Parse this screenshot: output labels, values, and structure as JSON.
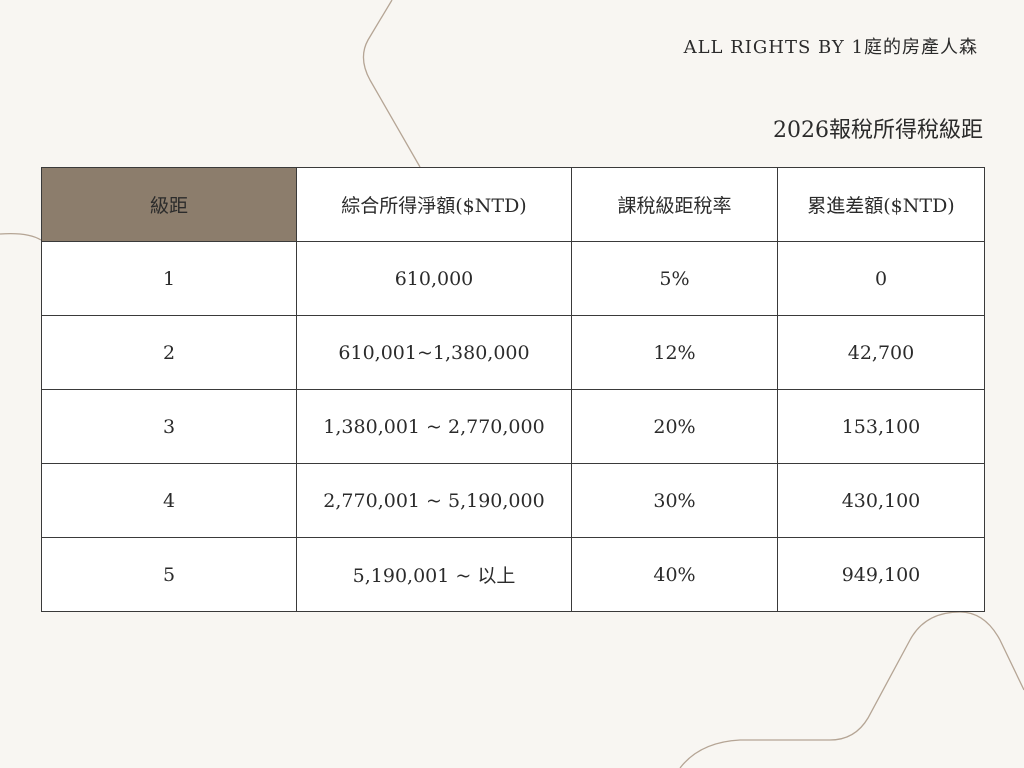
{
  "header": {
    "copyright": "ALL RIGHTS BY 1庭的房產人森",
    "title": "2026報稅所得稅級距"
  },
  "colors": {
    "background": "#f8f6f2",
    "header_accent": "#8c7d6c",
    "border": "#3a3a3a",
    "deco_line": "#b5a595"
  },
  "table": {
    "columns": [
      "級距",
      "綜合所得淨額($NTD)",
      "課稅級距稅率",
      "累進差額($NTD)"
    ],
    "rows": [
      [
        "1",
        "610,000",
        "5%",
        "0"
      ],
      [
        "2",
        "610,001~1,380,000",
        "12%",
        "42,700"
      ],
      [
        "3",
        "1,380,001 ~ 2,770,000",
        "20%",
        "153,100"
      ],
      [
        "4",
        "2,770,001 ~ 5,190,000",
        "30%",
        "430,100"
      ],
      [
        "5",
        "5,190,001 ~ 以上",
        "40%",
        "949,100"
      ]
    ]
  }
}
